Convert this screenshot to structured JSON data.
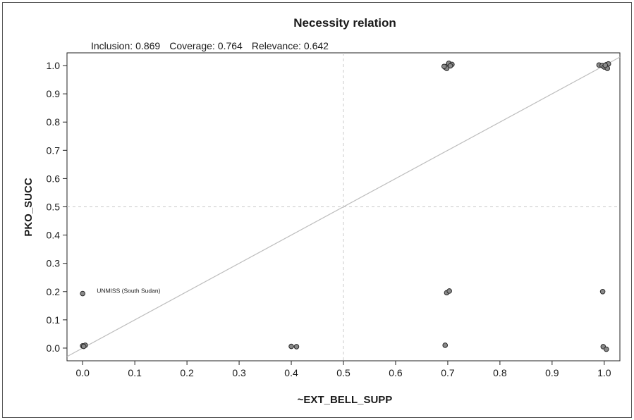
{
  "chart_data": {
    "type": "scatter",
    "title": "Necessity relation",
    "stats": {
      "inclusion_label": "Inclusion:",
      "inclusion": "0.869",
      "coverage_label": "Coverage:",
      "coverage": "0.764",
      "relevance_label": "Relevance:",
      "relevance": "0.642"
    },
    "xlabel": "~EXT_BELL_SUPP",
    "ylabel": "PKO_SUCC",
    "xlim": [
      -0.03,
      1.03
    ],
    "ylim": [
      -0.045,
      1.045
    ],
    "xticks": [
      "0.0",
      "0.1",
      "0.2",
      "0.3",
      "0.4",
      "0.5",
      "0.6",
      "0.7",
      "0.8",
      "0.9",
      "1.0"
    ],
    "yticks": [
      "0.0",
      "0.1",
      "0.2",
      "0.3",
      "0.4",
      "0.5",
      "0.6",
      "0.7",
      "0.8",
      "0.9",
      "1.0"
    ],
    "reference_lines": {
      "diagonal": true,
      "vertical_dashed_at_x": 0.5,
      "horizontal_dashed_at_y": 0.5
    },
    "marker_color": "#8a8a8a",
    "annotations": [
      {
        "text": "UNMISS (South Sudan)",
        "x": 0.0,
        "y": 0.193
      }
    ],
    "points": [
      {
        "x": 0.0,
        "y": 0.193
      },
      {
        "x": 0.0,
        "y": 0.008
      },
      {
        "x": 0.005,
        "y": 0.01
      },
      {
        "x": 0.002,
        "y": 0.006
      },
      {
        "x": 0.4,
        "y": 0.006
      },
      {
        "x": 0.41,
        "y": 0.005
      },
      {
        "x": 0.695,
        "y": 0.01
      },
      {
        "x": 0.698,
        "y": 0.196
      },
      {
        "x": 0.703,
        "y": 0.202
      },
      {
        "x": 0.695,
        "y": 0.994
      },
      {
        "x": 0.7,
        "y": 1.0
      },
      {
        "x": 0.702,
        "y": 1.008
      },
      {
        "x": 0.708,
        "y": 1.004
      },
      {
        "x": 0.698,
        "y": 0.99
      },
      {
        "x": 0.693,
        "y": 0.997
      },
      {
        "x": 0.705,
        "y": 0.999
      },
      {
        "x": 0.997,
        "y": 0.2
      },
      {
        "x": 0.998,
        "y": 0.005
      },
      {
        "x": 1.004,
        "y": -0.004
      },
      {
        "x": 0.99,
        "y": 1.002
      },
      {
        "x": 0.996,
        "y": 1.0
      },
      {
        "x": 1.0,
        "y": 0.995
      },
      {
        "x": 1.004,
        "y": 1.003
      },
      {
        "x": 1.008,
        "y": 1.006
      },
      {
        "x": 1.006,
        "y": 0.99
      },
      {
        "x": 1.002,
        "y": 1.001
      }
    ]
  }
}
